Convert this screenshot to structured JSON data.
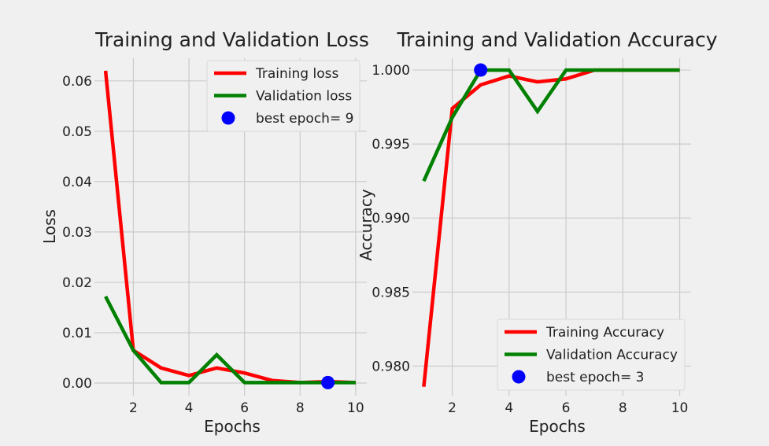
{
  "chart_data": [
    {
      "type": "line",
      "title": "Training and Validation Loss",
      "xlabel": "Epochs",
      "ylabel": "Loss",
      "xlim": [
        0.6,
        10.4
      ],
      "ylim": [
        -0.0025,
        0.0645
      ],
      "xticks": [
        2,
        4,
        6,
        8,
        10
      ],
      "yticks": [
        0.0,
        0.01,
        0.02,
        0.03,
        0.04,
        0.05,
        0.06
      ],
      "ytick_labels": [
        "0.00",
        "0.01",
        "0.02",
        "0.03",
        "0.04",
        "0.05",
        "0.06"
      ],
      "x": [
        1,
        2,
        3,
        4,
        5,
        6,
        7,
        8,
        9,
        10
      ],
      "series": [
        {
          "name": "Training loss",
          "color": "#ff0000",
          "values": [
            0.062,
            0.0065,
            0.003,
            0.0015,
            0.003,
            0.002,
            0.0005,
            0.0001,
            0.0003,
            0.0001
          ]
        },
        {
          "name": "Validation loss",
          "color": "#008000",
          "values": [
            0.0172,
            0.0065,
            0.0001,
            0.0001,
            0.0056,
            0.0001,
            0.0001,
            0.0001,
            0.0001,
            0.0001
          ]
        }
      ],
      "best_point": {
        "name": "best epoch= 9",
        "x": 9,
        "y": 0.0001,
        "color": "#0000ff"
      },
      "grid": true,
      "legend_position": "top-right"
    },
    {
      "type": "line",
      "title": "Training and Validation Accuracy",
      "xlabel": "Epochs",
      "ylabel": "Accuracy",
      "xlim": [
        0.6,
        10.4
      ],
      "ylim": [
        0.978,
        1.0008
      ],
      "xticks": [
        2,
        4,
        6,
        8,
        10
      ],
      "yticks": [
        0.98,
        0.985,
        0.99,
        0.995,
        1.0
      ],
      "ytick_labels": [
        "0.980",
        "0.985",
        "0.990",
        "0.995",
        "1.000"
      ],
      "x": [
        1,
        2,
        3,
        4,
        5,
        6,
        7,
        8,
        9,
        10
      ],
      "series": [
        {
          "name": "Training Accuracy",
          "color": "#ff0000",
          "values": [
            0.9786,
            0.9974,
            0.999,
            0.9996,
            0.9992,
            0.9994,
            1.0,
            1.0,
            1.0,
            1.0
          ]
        },
        {
          "name": "Validation Accuracy",
          "color": "#008000",
          "values": [
            0.9925,
            0.9968,
            1.0,
            1.0,
            0.9972,
            1.0,
            1.0,
            1.0,
            1.0,
            1.0
          ]
        }
      ],
      "best_point": {
        "name": "best epoch= 3",
        "x": 3,
        "y": 1.0,
        "color": "#0000ff"
      },
      "grid": true,
      "legend_position": "bottom-right"
    }
  ]
}
